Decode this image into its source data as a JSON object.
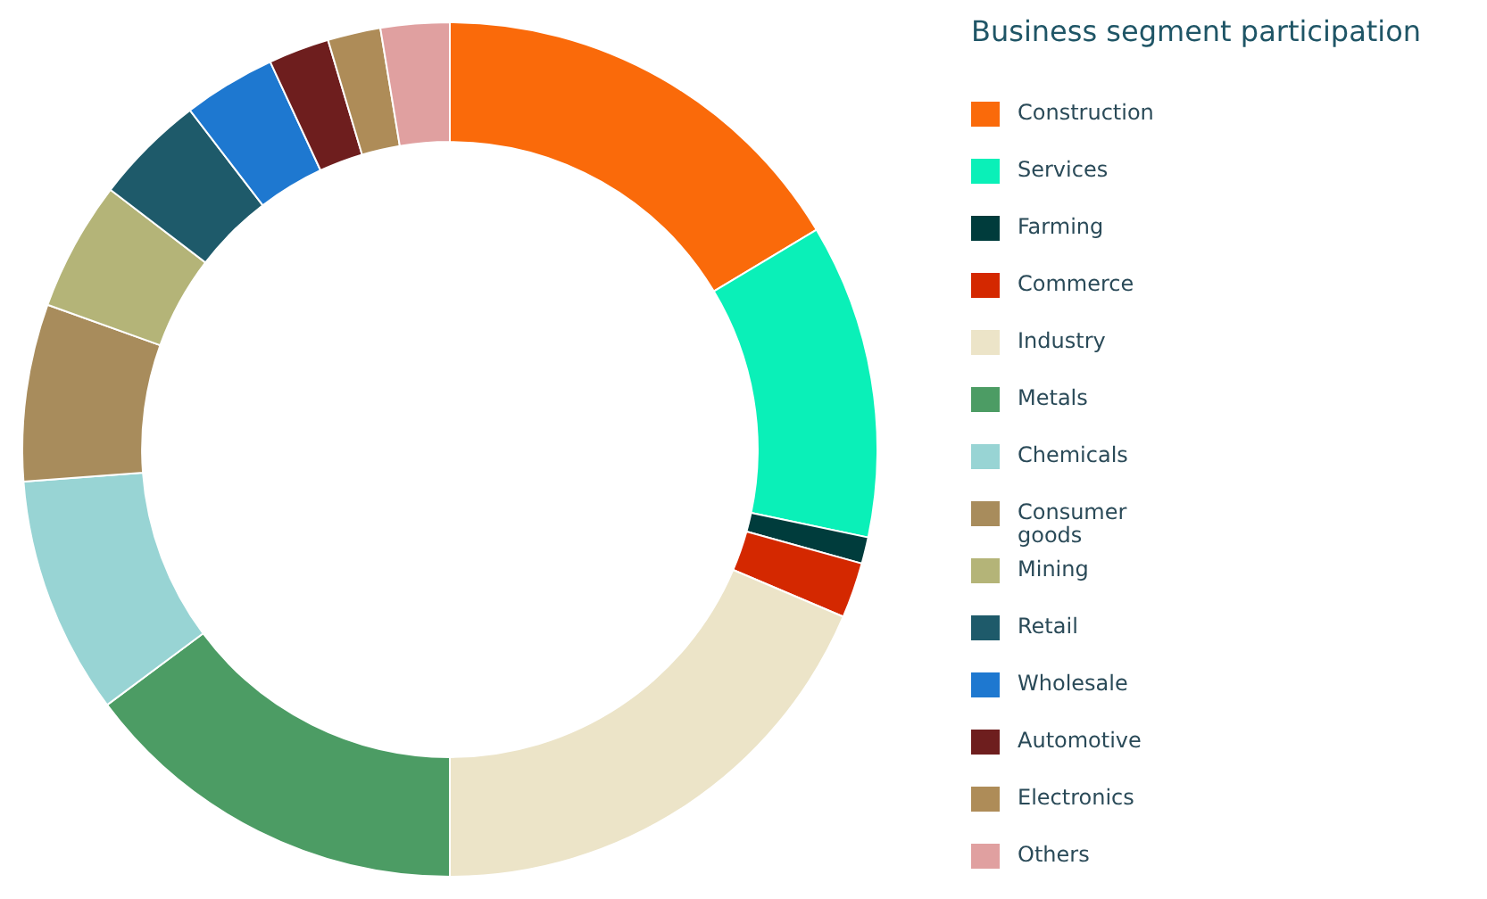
{
  "chart_data": {
    "type": "donut",
    "legend_title": "Business segment participation",
    "legend": "right",
    "categories": [
      "Construction",
      "Services",
      "Farming",
      "Commerce",
      "Industry",
      "Metals",
      "Chemicals",
      "Consumer goods",
      "Mining",
      "Retail",
      "Wholesale",
      "Automotive",
      "Electronics",
      "Others"
    ],
    "values": [
      16.4,
      11.9,
      1.0,
      2.1,
      18.6,
      14.8,
      9.0,
      6.7,
      4.9,
      4.2,
      3.5,
      2.3,
      2.0,
      2.6
    ],
    "colors": [
      "#fa6a0a",
      "#0af0b8",
      "#003c3c",
      "#d42800",
      "#ece4c8",
      "#4c9c64",
      "#98d4d4",
      "#a88c5c",
      "#b4b478",
      "#1e5a6a",
      "#1e78d0",
      "#6e1e1e",
      "#ae8c58",
      "#e0a0a0"
    ]
  }
}
